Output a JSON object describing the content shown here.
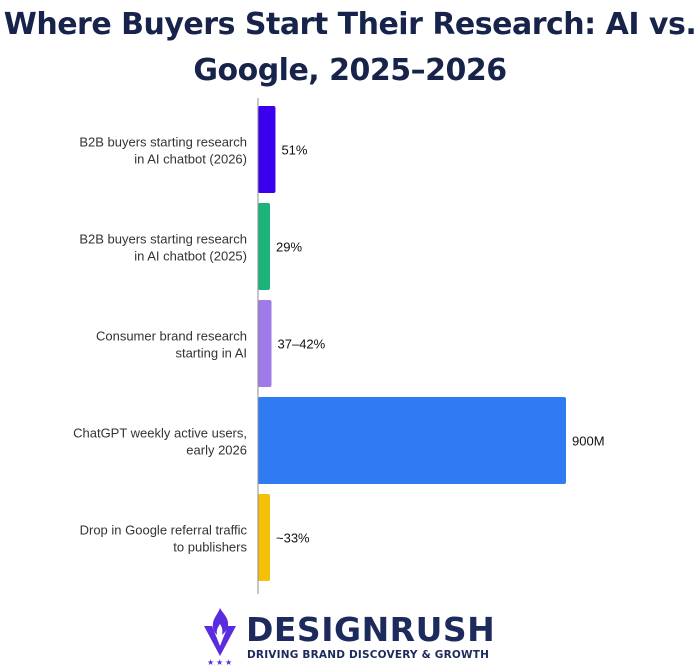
{
  "chart_data": {
    "type": "bar",
    "orientation": "horizontal",
    "title": "Where Buyers Start Their Research: AI vs. Google, 2025–2026",
    "categories": [
      "B2B buyers starting research in AI chatbot (2026)",
      "B2B buyers starting research in AI chatbot (2025)",
      "Consumer brand research starting in AI",
      "ChatGPT weekly active users, early 2026",
      "Drop in Google referral traffic to publishers"
    ],
    "category_lines": [
      [
        "B2B buyers starting research",
        "in AI chatbot (2026)"
      ],
      [
        "B2B buyers starting research",
        "in AI chatbot (2025)"
      ],
      [
        "Consumer brand research",
        "starting in AI"
      ],
      [
        "ChatGPT weekly active users,",
        "early 2026"
      ],
      [
        "Drop in Google referral traffic",
        "to publishers"
      ]
    ],
    "data_labels": [
      "51%",
      "29%",
      "37–42%",
      "900M",
      "~33%"
    ],
    "values": [
      51,
      29,
      39.5,
      900,
      33
    ],
    "colors": [
      "#3a00ee",
      "#1cb37a",
      "#9f7bea",
      "#2f7bf2",
      "#f5c108"
    ],
    "grid": false,
    "legend": "none"
  },
  "brand": {
    "name": "DESIGNRUSH",
    "tagline": "DRIVING BRAND DISCOVERY & GROWTH",
    "logo_icon": "flame-v-icon",
    "logo_color": "#5b2be0",
    "text_color": "#1d2a5c"
  }
}
